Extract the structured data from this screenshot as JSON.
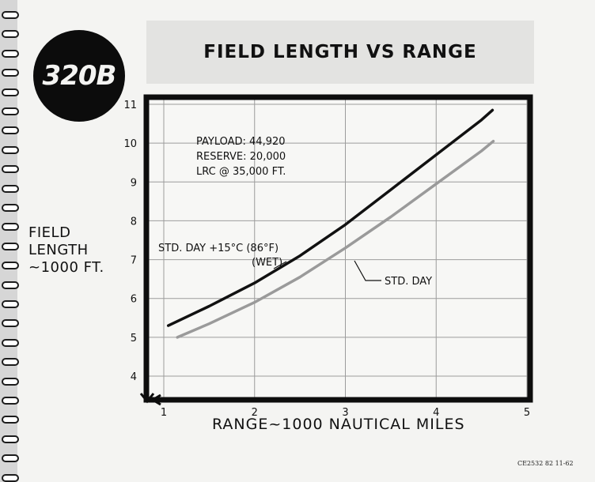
{
  "badge": {
    "label": "320B"
  },
  "title": "FIELD LENGTH VS RANGE",
  "footer_code": "CE2532 82 11-62",
  "chart_data": {
    "type": "line",
    "title": "FIELD LENGTH VS RANGE",
    "xlabel": "RANGE~1000 NAUTICAL MILES",
    "ylabel_lines": [
      "FIELD",
      "LENGTH",
      "~1000 FT."
    ],
    "xlim": [
      1,
      5
    ],
    "ylim": [
      4,
      11
    ],
    "xticks": [
      "1",
      "2",
      "3",
      "4",
      "5"
    ],
    "yticks": [
      "4",
      "5",
      "6",
      "7",
      "8",
      "9",
      "10",
      "11"
    ],
    "grid": true,
    "annotation": [
      "PAYLOAD: 44,920",
      "RESERVE: 20,000",
      "LRC @ 35,000 FT."
    ],
    "series": [
      {
        "name": "STD. DAY +15°C (86°F) (WET)",
        "label_lines": [
          "STD. DAY +15°C (86°F)",
          "(WET)"
        ],
        "color": "#111111",
        "x": [
          1.05,
          1.5,
          2.0,
          2.5,
          3.0,
          3.5,
          4.0,
          4.5,
          4.62
        ],
        "y": [
          5.3,
          5.8,
          6.4,
          7.1,
          7.9,
          8.8,
          9.7,
          10.6,
          10.85
        ]
      },
      {
        "name": "STD. DAY",
        "label_lines": [
          "STD. DAY"
        ],
        "color": "#9a9a9a",
        "x": [
          1.15,
          1.5,
          2.0,
          2.5,
          3.0,
          3.5,
          4.0,
          4.5,
          4.63
        ],
        "y": [
          5.0,
          5.35,
          5.9,
          6.55,
          7.3,
          8.1,
          8.95,
          9.8,
          10.05
        ]
      }
    ]
  }
}
